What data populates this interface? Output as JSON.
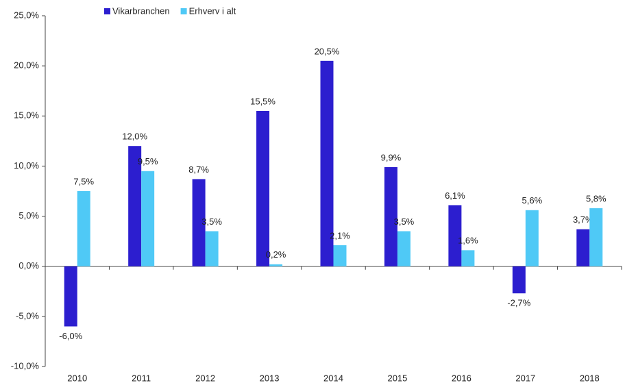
{
  "chart_data": {
    "type": "bar",
    "categories": [
      "2010",
      "2011",
      "2012",
      "2013",
      "2014",
      "2015",
      "2016",
      "2017",
      "2018"
    ],
    "series": [
      {
        "name": "Vikarbranchen",
        "color": "#2c1ecf",
        "values": [
          -6.0,
          12.0,
          8.7,
          15.5,
          20.5,
          9.9,
          6.1,
          -2.7,
          3.7
        ],
        "value_labels": [
          "-6,0%",
          "12,0%",
          "8,7%",
          "15,5%",
          "20,5%",
          "9,9%",
          "6,1%",
          "-2,7%",
          "3,7%"
        ]
      },
      {
        "name": "Erhverv i alt",
        "color": "#4fc9f6",
        "values": [
          7.5,
          9.5,
          3.5,
          0.2,
          2.1,
          3.5,
          1.6,
          5.6,
          5.8
        ],
        "value_labels": [
          "7,5%",
          "9,5%",
          "3,5%",
          "0,2%",
          "2,1%",
          "3,5%",
          "1,6%",
          "5,6%",
          "5,8%"
        ]
      }
    ],
    "ylim": [
      -10,
      25
    ],
    "yticks": [
      {
        "value": -10,
        "label": "-10,0%"
      },
      {
        "value": -5,
        "label": "-5,0%"
      },
      {
        "value": 0,
        "label": "0,0%"
      },
      {
        "value": 5,
        "label": "5,0%"
      },
      {
        "value": 10,
        "label": "10,0%"
      },
      {
        "value": 15,
        "label": "15,0%"
      },
      {
        "value": 20,
        "label": "20,0%"
      },
      {
        "value": 25,
        "label": "25,0%"
      }
    ],
    "legend": "top-left",
    "grid": false
  }
}
